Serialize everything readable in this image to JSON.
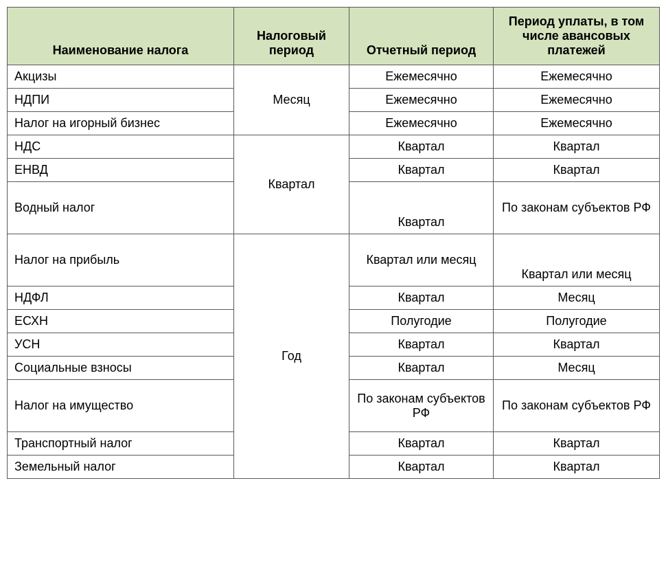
{
  "header_bg": "#d4e3bd",
  "columns": [
    "Наименование налога",
    "Налоговый период",
    "Отчетный период",
    "Период уплаты, в том числе авансовых платежей"
  ],
  "groups": [
    {
      "tax_period": "Месяц",
      "rows": [
        {
          "name": "Акцизы",
          "reporting": "Ежемесячно",
          "payment": "Ежемесячно"
        },
        {
          "name": "НДПИ",
          "reporting": "Ежемесячно",
          "payment": "Ежемесячно"
        },
        {
          "name": "Налог на игорный бизнес",
          "reporting": "Ежемесячно",
          "payment": "Ежемесячно"
        }
      ]
    },
    {
      "tax_period": "Квартал",
      "rows": [
        {
          "name": "НДС",
          "reporting": "Квартал",
          "payment": "Квартал"
        },
        {
          "name": "ЕНВД",
          "reporting": "Квартал",
          "payment": "Квартал"
        },
        {
          "name": "Водный налог",
          "reporting": "Квартал",
          "payment": "По законам субъектов РФ",
          "tall": true
        }
      ]
    },
    {
      "tax_period": "Год",
      "rows": [
        {
          "name": "Налог на прибыль",
          "reporting": "Квартал или месяц",
          "payment": "Квартал или месяц",
          "tall": true,
          "pay_bottom": true
        },
        {
          "name": "НДФЛ",
          "reporting": "Квартал",
          "payment": "Месяц"
        },
        {
          "name": "ЕСХН",
          "reporting": "Полугодие",
          "payment": "Полугодие"
        },
        {
          "name": "УСН",
          "reporting": "Квартал",
          "payment": "Квартал"
        },
        {
          "name": "Социальные взносы",
          "reporting": "Квартал",
          "payment": "Месяц"
        },
        {
          "name": "Налог на имущество",
          "reporting": "По законам субъектов РФ",
          "payment": "По законам субъектов РФ",
          "tall": true
        },
        {
          "name": "Транспортный налог",
          "reporting": "Квартал",
          "payment": "Квартал"
        },
        {
          "name": "Земельный налог",
          "reporting": "Квартал",
          "payment": "Квартал"
        }
      ]
    }
  ]
}
